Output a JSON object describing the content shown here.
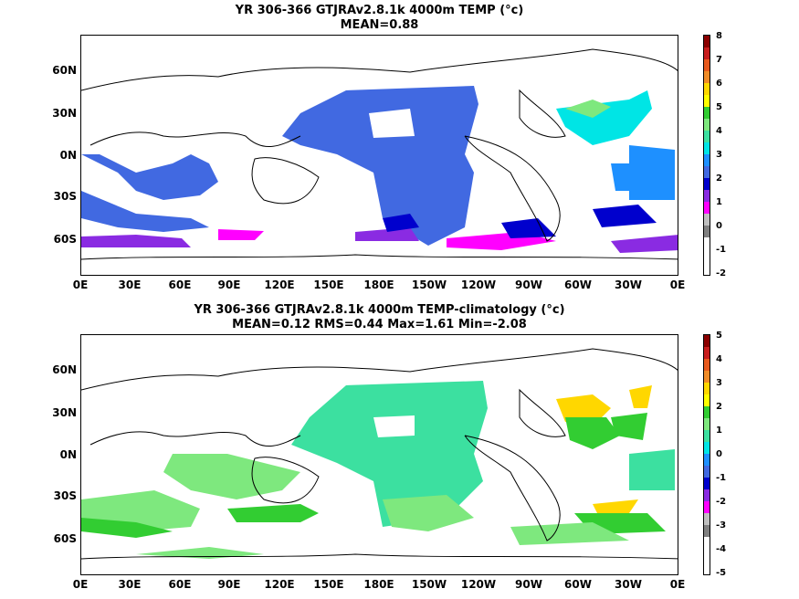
{
  "panels": [
    {
      "title_line1": "YR 306-366 GTJRAv2.8.1k 4000m TEMP (°c)",
      "title_line2": "MEAN=0.88",
      "colorbar_labels": [
        "8",
        "7",
        "6",
        "5",
        "4",
        "3",
        "2",
        "1",
        "0",
        "-1",
        "-2"
      ],
      "colors": [
        "#8b0000",
        "#c81e1e",
        "#e85a1e",
        "#f08c28",
        "#ffd700",
        "#ffff00",
        "#32cd32",
        "#7ee87e",
        "#3ce0a0",
        "#00e5e5",
        "#1e90ff",
        "#4169e1",
        "#0000cd",
        "#8a2be2",
        "#ff00ff",
        "#bfbfbf",
        "#808080"
      ]
    },
    {
      "title_line1": "YR 306-366 GTJRAv2.8.1k 4000m TEMP-climatology (°c)",
      "title_line2": "MEAN=0.12   RMS=0.44   Max=1.61   Min=-2.08",
      "colorbar_labels": [
        "5",
        "4",
        "3",
        "2",
        "1",
        "0",
        "-1",
        "-2",
        "-3",
        "-4",
        "-5"
      ],
      "colors": [
        "#8b0000",
        "#c81e1e",
        "#e85a1e",
        "#f08c28",
        "#ffd700",
        "#ffff00",
        "#32cd32",
        "#7ee87e",
        "#3ce0a0",
        "#00e5e5",
        "#1e90ff",
        "#4169e1",
        "#0000cd",
        "#8a2be2",
        "#ff00ff",
        "#bfbfbf",
        "#808080"
      ]
    }
  ],
  "lat_labels": [
    "60N",
    "30N",
    "0N",
    "30S",
    "60S"
  ],
  "lon_labels": [
    "0E",
    "30E",
    "60E",
    "90E",
    "120E",
    "150E",
    "180E",
    "150W",
    "120W",
    "90W",
    "60W",
    "30W",
    "0E"
  ]
}
